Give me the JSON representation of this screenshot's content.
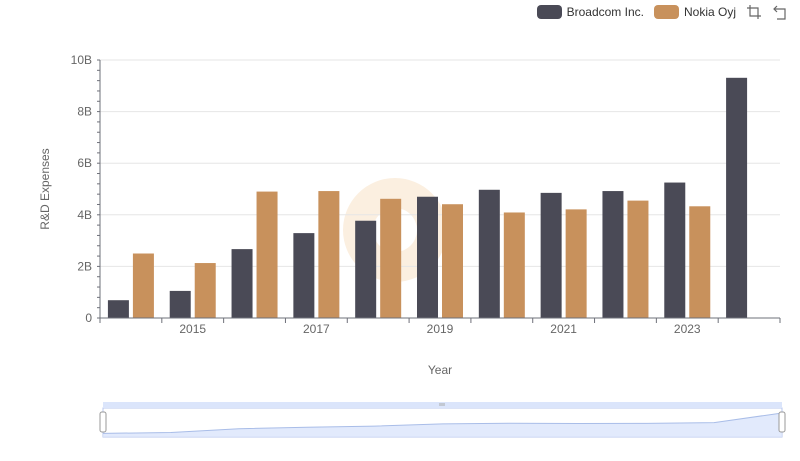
{
  "colors": {
    "broadcom": "#4a4a56",
    "nokia": "#c8915c",
    "grid": "#e6e6e6",
    "axis": "#6e7079",
    "zoom_fill": "#dbe5fb",
    "zoom_border": "#b8c7ee",
    "zoom_line": "#a9bde8"
  },
  "toolbar": {
    "zoom_icon": "zoom-select-icon",
    "reset_icon": "zoom-reset-icon"
  },
  "chart_data": {
    "type": "bar",
    "x": [
      2014,
      2015,
      2016,
      2017,
      2018,
      2019,
      2020,
      2021,
      2022,
      2023,
      2024
    ],
    "x_tick_labels": [
      "2015",
      "2017",
      "2019",
      "2021",
      "2023"
    ],
    "x_tick_values": [
      2015,
      2017,
      2019,
      2021,
      2023
    ],
    "series": [
      {
        "name": "Broadcom Inc.",
        "color": "#4a4a56",
        "values": [
          0.69,
          1.05,
          2.67,
          3.29,
          3.77,
          4.7,
          4.97,
          4.85,
          4.92,
          5.25,
          9.31
        ]
      },
      {
        "name": "Nokia Oyj",
        "color": "#c8915c",
        "values": [
          2.5,
          2.13,
          4.9,
          4.92,
          4.62,
          4.41,
          4.09,
          4.21,
          4.55,
          4.33,
          null
        ]
      }
    ],
    "xlabel": "Year",
    "ylabel": "R&D Expenses",
    "ylim": [
      0,
      10
    ],
    "y_ticks": [
      0,
      2,
      4,
      6,
      8,
      10
    ],
    "y_tick_labels": [
      "0",
      "2B",
      "4B",
      "6B",
      "8B",
      "10B"
    ],
    "grid": true,
    "legend_position": "top-right",
    "data_zoom": true
  }
}
